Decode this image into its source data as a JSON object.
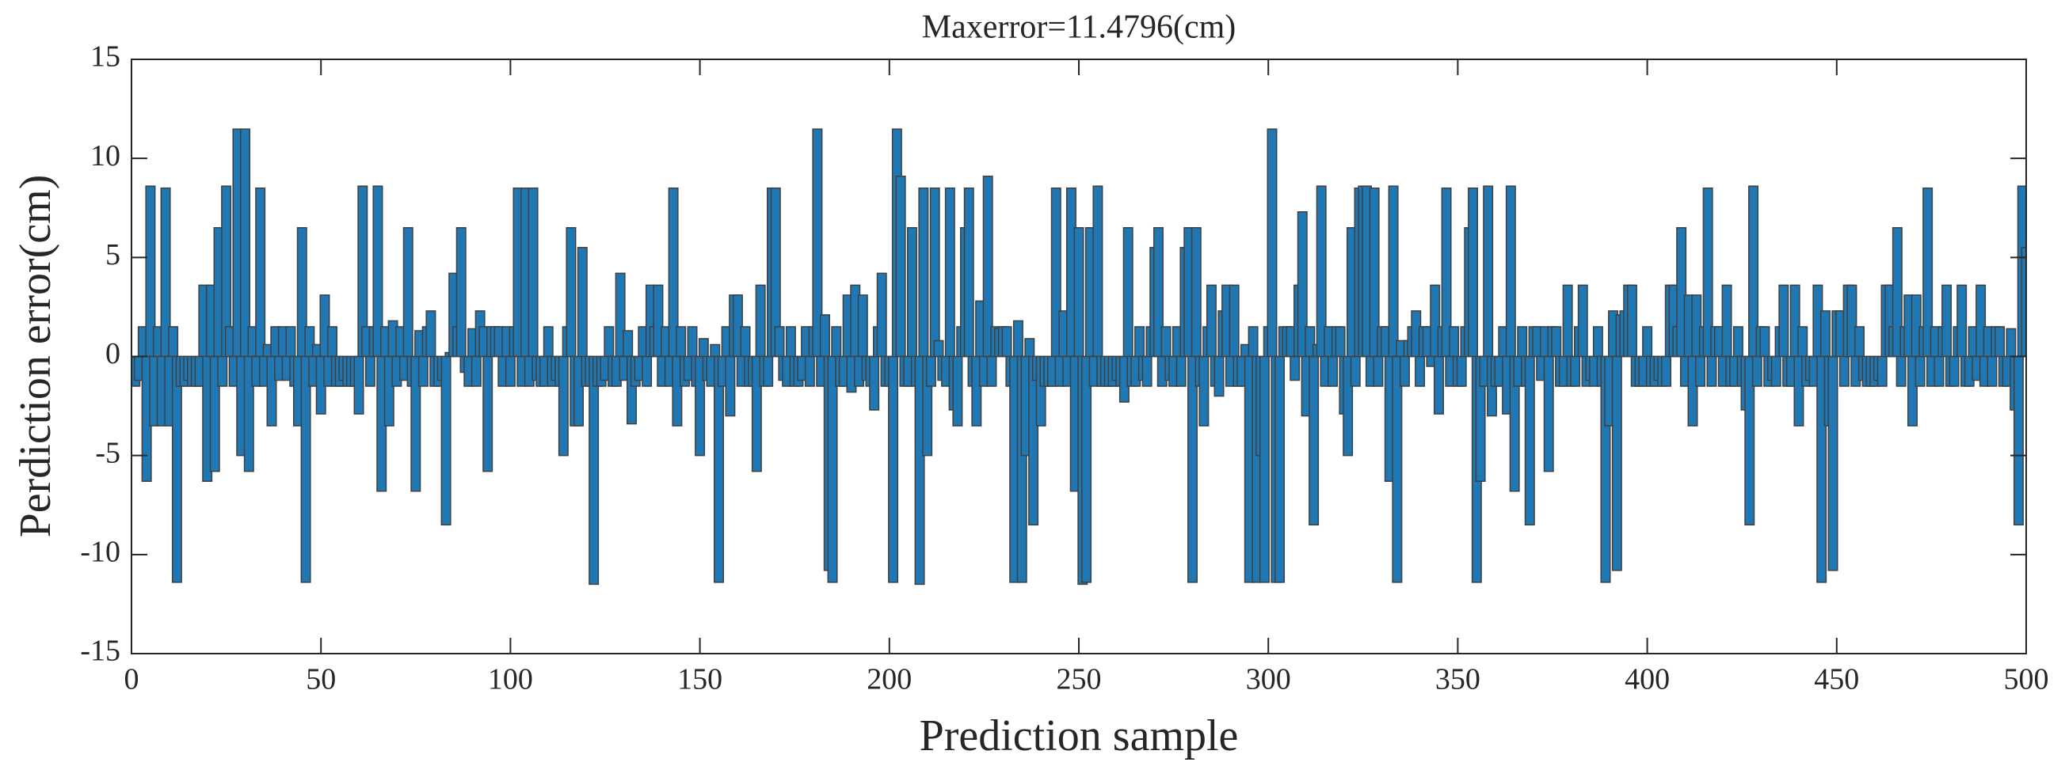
{
  "chart_data": {
    "type": "bar",
    "title": "Maxerror=11.4796(cm)",
    "xlabel": "Prediction sample",
    "ylabel": "Perdiction error(cm)",
    "color": "#1f77b4",
    "edgecolor": "#404040",
    "xlim": [
      0,
      500
    ],
    "ylim": [
      -15,
      15
    ],
    "xticks": [
      0,
      50,
      100,
      150,
      200,
      250,
      300,
      350,
      400,
      450,
      500
    ],
    "yticks": [
      -15,
      -10,
      -5,
      0,
      5,
      10,
      15
    ],
    "x": [
      1,
      2,
      3,
      4,
      5,
      6,
      7,
      8,
      9,
      10,
      11,
      12,
      13,
      14,
      15,
      16,
      17,
      18,
      19,
      20,
      21,
      22,
      23,
      24,
      25,
      26,
      27,
      28,
      29,
      30,
      31,
      32,
      33,
      34,
      35,
      36,
      37,
      38,
      39,
      40,
      41,
      42,
      43,
      44,
      45,
      46,
      47,
      48,
      49,
      50,
      51,
      52,
      53,
      54,
      55,
      56,
      57,
      58,
      59,
      60,
      61,
      62,
      63,
      64,
      65,
      66,
      67,
      68,
      69,
      70,
      71,
      72,
      73,
      74,
      75,
      76,
      77,
      78,
      79,
      80,
      81,
      82,
      83,
      84,
      85,
      86,
      87,
      88,
      89,
      90,
      91,
      92,
      93,
      94,
      95,
      96,
      97,
      98,
      99,
      100,
      101,
      102,
      103,
      104,
      105,
      106,
      107,
      108,
      109,
      110,
      111,
      112,
      113,
      114,
      115,
      116,
      117,
      118,
      119,
      120,
      121,
      122,
      123,
      124,
      125,
      126,
      127,
      128,
      129,
      130,
      131,
      132,
      133,
      134,
      135,
      136,
      137,
      138,
      139,
      140,
      141,
      142,
      143,
      144,
      145,
      146,
      147,
      148,
      149,
      150,
      151,
      152,
      153,
      154,
      155,
      156,
      157,
      158,
      159,
      160,
      161,
      162,
      163,
      164,
      165,
      166,
      167,
      168,
      169,
      170,
      171,
      172,
      173,
      174,
      175,
      176,
      177,
      178,
      179,
      180,
      181,
      182,
      183,
      184,
      185,
      186,
      187,
      188,
      189,
      190,
      191,
      192,
      193,
      194,
      195,
      196,
      197,
      198,
      199,
      200,
      201,
      202,
      203,
      204,
      205,
      206,
      207,
      208,
      209,
      210,
      211,
      212,
      213,
      214,
      215,
      216,
      217,
      218,
      219,
      220,
      221,
      222,
      223,
      224,
      225,
      226,
      227,
      228,
      229,
      230,
      231,
      232,
      233,
      234,
      235,
      236,
      237,
      238,
      239,
      240,
      241,
      242,
      243,
      244,
      245,
      246,
      247,
      248,
      249,
      250,
      251,
      252,
      253,
      254,
      255,
      256,
      257,
      258,
      259,
      260,
      261,
      262,
      263,
      264,
      265,
      266,
      267,
      268,
      269,
      270,
      271,
      272,
      273,
      274,
      275,
      276,
      277,
      278,
      279,
      280,
      281,
      282,
      283,
      284,
      285,
      286,
      287,
      288,
      289,
      290,
      291,
      292,
      293,
      294,
      295,
      296,
      297,
      298,
      299,
      300,
      301,
      302,
      303,
      304,
      305,
      306,
      307,
      308,
      309,
      310,
      311,
      312,
      313,
      314,
      315,
      316,
      317,
      318,
      319,
      320,
      321,
      322,
      323,
      324,
      325,
      326,
      327,
      328,
      329,
      330,
      331,
      332,
      333,
      334,
      335,
      336,
      337,
      338,
      339,
      340,
      341,
      342,
      343,
      344,
      345,
      346,
      347,
      348,
      349,
      350,
      351,
      352,
      353,
      354,
      355,
      356,
      357,
      358,
      359,
      360,
      361,
      362,
      363,
      364,
      365,
      366,
      367,
      368,
      369,
      370,
      371,
      372,
      373,
      374,
      375,
      376,
      377,
      378,
      379,
      380,
      381,
      382,
      383,
      384,
      385,
      386,
      387,
      388,
      389,
      390,
      391,
      392,
      393,
      394,
      395,
      396,
      397,
      398,
      399,
      400,
      401,
      402,
      403,
      404,
      405,
      406,
      407,
      408,
      409,
      410,
      411,
      412,
      413,
      414,
      415,
      416,
      417,
      418,
      419,
      420,
      421,
      422,
      423,
      424,
      425,
      426,
      427,
      428,
      429,
      430,
      431,
      432,
      433,
      434,
      435,
      436,
      437,
      438,
      439,
      440,
      441,
      442,
      443,
      444,
      445,
      446,
      447,
      448,
      449,
      450,
      451,
      452,
      453,
      454,
      455,
      456,
      457,
      458,
      459,
      460,
      461,
      462,
      463,
      464,
      465,
      466,
      467,
      468,
      469,
      470,
      471,
      472,
      473,
      474,
      475,
      476,
      477,
      478,
      479,
      480,
      481,
      482,
      483,
      484,
      485,
      486,
      487,
      488,
      489,
      490,
      491,
      492,
      493,
      494,
      495,
      496,
      497,
      498,
      499,
      500
    ],
    "values": [
      -1.5,
      -1.2,
      1.5,
      -6.3,
      8.6,
      -3.5,
      1.5,
      -3.5,
      8.5,
      -3.5,
      1.5,
      -11.4,
      -1.5,
      -1.5,
      -1.2,
      -1.5,
      -1.5,
      -1.5,
      3.6,
      -6.3,
      3.6,
      -5.8,
      6.5,
      -1.5,
      8.6,
      1.5,
      -1.5,
      11.48,
      -5.0,
      11.48,
      -5.8,
      1.5,
      -1.5,
      8.5,
      -1.5,
      0.6,
      -3.5,
      1.5,
      -1.2,
      1.5,
      -1.2,
      1.5,
      -1.5,
      -3.5,
      6.5,
      -11.4,
      1.5,
      -1.5,
      0.6,
      -2.9,
      3.1,
      -1.5,
      1.5,
      -1.5,
      -1.5,
      -1.2,
      -1.5,
      -1.5,
      -1.5,
      -2.9,
      8.6,
      1.5,
      -1.5,
      1.5,
      8.6,
      -6.8,
      1.5,
      -3.5,
      1.8,
      -1.5,
      1.5,
      -1.2,
      6.5,
      -1.5,
      -6.8,
      1.3,
      -1.5,
      1.5,
      2.3,
      -1.5,
      -1.5,
      -1.2,
      -8.5,
      0.2,
      4.2,
      1.5,
      6.5,
      -0.8,
      -1.5,
      1.4,
      -1.5,
      2.3,
      1.5,
      -5.8,
      1.5,
      1.5,
      1.5,
      -1.5,
      1.5,
      -1.5,
      1.5,
      8.5,
      -1.5,
      8.5,
      -1.5,
      8.5,
      -1.2,
      -1.5,
      -1.5,
      1.5,
      -1.5,
      -1.2,
      -1.5,
      -5.0,
      1.5,
      6.5,
      -3.5,
      -3.5,
      5.5,
      -1.5,
      -1.5,
      -11.5,
      -1.5,
      -1.5,
      -1.2,
      1.5,
      -1.5,
      -1.5,
      4.2,
      -1.2,
      1.3,
      -3.4,
      -1.5,
      -1.2,
      1.5,
      -1.5,
      3.6,
      1.5,
      3.6,
      -1.5,
      1.5,
      -1.5,
      8.5,
      -3.5,
      1.5,
      -1.5,
      -1.2,
      1.5,
      -1.5,
      -5.0,
      0.9,
      -1.2,
      -1.5,
      0.6,
      -11.4,
      -1.5,
      1.5,
      -3.0,
      3.1,
      3.1,
      -1.5,
      1.5,
      -1.5,
      -1.5,
      -5.8,
      3.6,
      -1.5,
      -1.5,
      8.5,
      8.5,
      1.5,
      -1.2,
      -1.5,
      1.5,
      -1.5,
      -1.5,
      -1.2,
      1.5,
      -1.5,
      1.5,
      11.48,
      -1.5,
      2.1,
      -10.8,
      -11.4,
      1.5,
      -1.5,
      -1.5,
      3.1,
      -1.8,
      3.6,
      -1.5,
      3.1,
      -1.2,
      -1.5,
      -2.7,
      1.5,
      4.2,
      -1.5,
      -1.5,
      -11.4,
      11.48,
      9.1,
      -1.5,
      -1.5,
      6.5,
      -1.5,
      -11.5,
      8.5,
      -5.0,
      -1.5,
      8.5,
      0.8,
      -1.2,
      -1.5,
      8.5,
      -2.7,
      -3.5,
      1.5,
      6.5,
      8.5,
      -1.5,
      -3.5,
      2.8,
      -1.5,
      9.1,
      -1.5,
      1.5,
      1.4,
      1.5,
      1.5,
      -1.5,
      -11.4,
      1.8,
      -11.4,
      -5.0,
      0.9,
      -8.5,
      -1.2,
      -3.5,
      -1.5,
      -1.5,
      -1.5,
      8.5,
      -1.5,
      2.3,
      -1.5,
      8.5,
      -6.8,
      6.5,
      -11.5,
      -11.4,
      6.5,
      -1.5,
      8.6,
      -1.5,
      -1.5,
      -1.5,
      -1.5,
      -1.2,
      -1.5,
      -2.3,
      6.5,
      -1.5,
      -1.5,
      1.5,
      -1.2,
      -1.5,
      1.5,
      5.5,
      6.5,
      -1.5,
      1.5,
      -1.2,
      -1.5,
      1.5,
      -1.5,
      5.5,
      6.5,
      -11.4,
      6.5,
      -1.5,
      -3.5,
      1.5,
      3.6,
      -1.5,
      -2.0,
      2.3,
      3.6,
      -1.5,
      3.6,
      -1.5,
      -1.5,
      0.6,
      -11.4,
      1.5,
      -11.4,
      -5.0,
      -11.4,
      1.5,
      11.48,
      -11.4,
      -11.4,
      1.5,
      1.5,
      1.5,
      -1.2,
      3.6,
      7.3,
      -3.0,
      1.5,
      -8.5,
      0.6,
      8.6,
      -1.5,
      1.5,
      -1.5,
      1.5,
      1.5,
      -2.9,
      -5.0,
      6.5,
      -1.5,
      8.5,
      8.6,
      8.6,
      -1.5,
      8.5,
      -1.5,
      1.5,
      1.5,
      -6.3,
      8.6,
      -11.4,
      0.8,
      -1.5,
      0.8,
      1.5,
      2.3,
      -1.5,
      1.5,
      1.5,
      -0.5,
      3.6,
      -2.9,
      1.5,
      8.5,
      -1.5,
      1.5,
      -1.5,
      -1.5,
      1.5,
      6.5,
      8.5,
      -11.4,
      -6.3,
      -1.5,
      8.6,
      -3.0,
      -1.5,
      -1.5,
      1.5,
      -2.9,
      8.6,
      -6.8,
      -1.5,
      1.5,
      -1.5,
      -8.5,
      1.5,
      1.5,
      -1.2,
      1.5,
      -5.8,
      1.5,
      1.5,
      -1.5,
      -1.5,
      3.6,
      -1.5,
      -1.5,
      1.5,
      3.6,
      -1.5,
      -1.2,
      -1.5,
      1.5,
      -1.5,
      -11.4,
      -3.5,
      2.3,
      -10.8,
      2.1,
      2.3,
      3.6,
      3.6,
      -1.5,
      -1.5,
      -1.5,
      1.5,
      -1.5,
      -1.5,
      -1.2,
      -1.5,
      -1.5,
      3.6,
      3.6,
      1.5,
      6.5,
      -1.5,
      3.1,
      -3.5,
      3.1,
      -1.5,
      1.5,
      8.5,
      -1.5,
      1.5,
      1.5,
      -1.5,
      3.6,
      -1.5,
      -1.5,
      1.5,
      -1.5,
      -2.7,
      -8.5,
      8.6,
      -1.5,
      1.5,
      1.5,
      -1.5,
      -1.2,
      -1.5,
      1.5,
      3.6,
      -1.5,
      -1.5,
      3.6,
      -3.5,
      1.5,
      -1.5,
      -1.2,
      -1.5,
      3.6,
      -11.4,
      2.3,
      -3.5,
      -10.8,
      2.3,
      2.3,
      -1.5,
      3.6,
      3.6,
      -1.5,
      1.5,
      -1.2,
      -1.5,
      -1.5,
      -1.5,
      -1.2,
      -1.5,
      3.6,
      3.6,
      1.5,
      6.5,
      -1.5,
      1.5,
      3.1,
      -3.5,
      3.1,
      -1.5,
      1.5,
      8.5,
      -1.5,
      1.5,
      -1.5,
      1.5,
      3.6,
      -1.5,
      -1.5,
      1.5,
      3.6,
      -1.5,
      -1.5,
      1.5,
      -1.2,
      3.6,
      -1.5,
      1.5,
      -1.5,
      1.5,
      1.5,
      -1.5,
      -1.5,
      1.4,
      -2.7,
      -8.5,
      8.6,
      5.5
    ]
  }
}
